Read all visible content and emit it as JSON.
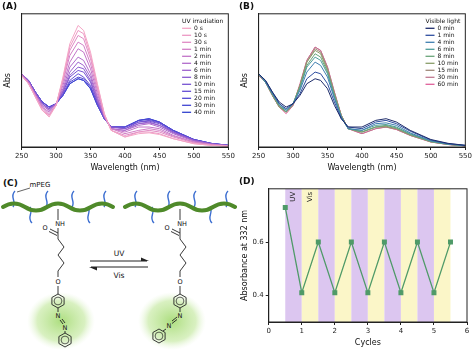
{
  "chart_data": [
    {
      "panel_label": "(A)",
      "type": "line",
      "marker": "none",
      "grid": false,
      "tick_labels": "x",
      "x_label": "Wavelength (nm)",
      "y_label": "Abs",
      "xlim": [
        250,
        550
      ],
      "xticks": [
        250,
        300,
        350,
        400,
        450,
        500,
        550
      ],
      "ylim": [
        0,
        0.8
      ],
      "legend": "upper right",
      "legend_title": "UV irradiation",
      "x": [
        250,
        260,
        270,
        280,
        290,
        300,
        310,
        320,
        332,
        340,
        350,
        360,
        370,
        380,
        400,
        420,
        435,
        450,
        470,
        500,
        525,
        550
      ],
      "series": [
        {
          "name": "0 s",
          "color": "#f4a6c6",
          "values": [
            0.43,
            0.38,
            0.3,
            0.22,
            0.18,
            0.25,
            0.42,
            0.62,
            0.73,
            0.7,
            0.57,
            0.38,
            0.2,
            0.1,
            0.06,
            0.08,
            0.085,
            0.075,
            0.05,
            0.02,
            0.01,
            0.005
          ]
        },
        {
          "name": "10 s",
          "color": "#ec98c4",
          "values": [
            0.43,
            0.38,
            0.3,
            0.22,
            0.19,
            0.25,
            0.41,
            0.6,
            0.7,
            0.68,
            0.55,
            0.37,
            0.2,
            0.1,
            0.06,
            0.09,
            0.09,
            0.08,
            0.05,
            0.02,
            0.01,
            0.005
          ]
        },
        {
          "name": "30 s",
          "color": "#e08bc4",
          "values": [
            0.43,
            0.38,
            0.31,
            0.23,
            0.19,
            0.25,
            0.4,
            0.58,
            0.67,
            0.65,
            0.53,
            0.36,
            0.19,
            0.1,
            0.07,
            0.09,
            0.1,
            0.09,
            0.06,
            0.025,
            0.012,
            0.006
          ]
        },
        {
          "name": "1 min",
          "color": "#d27fc6",
          "values": [
            0.43,
            0.39,
            0.31,
            0.24,
            0.2,
            0.25,
            0.39,
            0.55,
            0.63,
            0.61,
            0.5,
            0.34,
            0.19,
            0.11,
            0.08,
            0.1,
            0.11,
            0.1,
            0.065,
            0.03,
            0.014,
            0.006
          ]
        },
        {
          "name": "2 min",
          "color": "#c274c8",
          "values": [
            0.43,
            0.39,
            0.31,
            0.24,
            0.21,
            0.25,
            0.37,
            0.51,
            0.59,
            0.57,
            0.47,
            0.32,
            0.19,
            0.11,
            0.09,
            0.12,
            0.12,
            0.11,
            0.07,
            0.03,
            0.015,
            0.007
          ]
        },
        {
          "name": "4 min",
          "color": "#b06bcb",
          "values": [
            0.44,
            0.39,
            0.32,
            0.25,
            0.22,
            0.26,
            0.35,
            0.48,
            0.54,
            0.52,
            0.44,
            0.3,
            0.18,
            0.11,
            0.1,
            0.13,
            0.14,
            0.12,
            0.08,
            0.035,
            0.017,
            0.008
          ]
        },
        {
          "name": "6 min",
          "color": "#9d62cd",
          "values": [
            0.44,
            0.39,
            0.32,
            0.26,
            0.22,
            0.26,
            0.34,
            0.45,
            0.51,
            0.49,
            0.42,
            0.29,
            0.18,
            0.11,
            0.1,
            0.14,
            0.145,
            0.13,
            0.085,
            0.04,
            0.018,
            0.008
          ]
        },
        {
          "name": "8 min",
          "color": "#8a5ad0",
          "values": [
            0.44,
            0.4,
            0.32,
            0.26,
            0.23,
            0.26,
            0.33,
            0.43,
            0.48,
            0.47,
            0.4,
            0.28,
            0.18,
            0.12,
            0.11,
            0.14,
            0.15,
            0.13,
            0.09,
            0.04,
            0.019,
            0.009
          ]
        },
        {
          "name": "10 min",
          "color": "#7753d2",
          "values": [
            0.44,
            0.4,
            0.33,
            0.26,
            0.23,
            0.26,
            0.33,
            0.42,
            0.46,
            0.45,
            0.39,
            0.27,
            0.17,
            0.12,
            0.11,
            0.15,
            0.155,
            0.14,
            0.09,
            0.04,
            0.02,
            0.009
          ]
        },
        {
          "name": "15 min",
          "color": "#644dd4",
          "values": [
            0.44,
            0.4,
            0.33,
            0.27,
            0.24,
            0.26,
            0.32,
            0.4,
            0.44,
            0.42,
            0.37,
            0.26,
            0.17,
            0.12,
            0.12,
            0.15,
            0.16,
            0.145,
            0.095,
            0.045,
            0.021,
            0.01
          ]
        },
        {
          "name": "20 min",
          "color": "#5248d4",
          "values": [
            0.44,
            0.4,
            0.33,
            0.27,
            0.24,
            0.26,
            0.31,
            0.39,
            0.42,
            0.41,
            0.36,
            0.26,
            0.17,
            0.12,
            0.12,
            0.16,
            0.165,
            0.15,
            0.1,
            0.045,
            0.022,
            0.01
          ]
        },
        {
          "name": "30 min",
          "color": "#4145d2",
          "values": [
            0.44,
            0.4,
            0.33,
            0.27,
            0.24,
            0.26,
            0.31,
            0.38,
            0.41,
            0.4,
            0.35,
            0.25,
            0.17,
            0.12,
            0.12,
            0.16,
            0.17,
            0.15,
            0.1,
            0.045,
            0.022,
            0.01
          ]
        },
        {
          "name": "40 min",
          "color": "#3243cf",
          "values": [
            0.44,
            0.4,
            0.33,
            0.27,
            0.24,
            0.26,
            0.31,
            0.38,
            0.41,
            0.4,
            0.35,
            0.25,
            0.17,
            0.12,
            0.12,
            0.16,
            0.17,
            0.15,
            0.1,
            0.045,
            0.022,
            0.01
          ]
        }
      ]
    },
    {
      "panel_label": "(B)",
      "type": "line",
      "marker": "none",
      "grid": false,
      "tick_labels": "x",
      "x_label": "Wavelength (nm)",
      "y_label": "Abs",
      "xlim": [
        250,
        550
      ],
      "xticks": [
        250,
        300,
        350,
        400,
        450,
        500,
        550
      ],
      "ylim": [
        0,
        0.8
      ],
      "legend": "upper right",
      "legend_title": "Visible light",
      "x": [
        250,
        260,
        270,
        280,
        290,
        300,
        310,
        320,
        332,
        340,
        350,
        360,
        370,
        380,
        400,
        420,
        435,
        450,
        470,
        500,
        525,
        550
      ],
      "series": [
        {
          "name": "0 min",
          "color": "#1f2d6b",
          "values": [
            0.44,
            0.4,
            0.33,
            0.27,
            0.24,
            0.26,
            0.31,
            0.38,
            0.41,
            0.4,
            0.35,
            0.25,
            0.17,
            0.12,
            0.12,
            0.16,
            0.17,
            0.15,
            0.1,
            0.045,
            0.022,
            0.01
          ]
        },
        {
          "name": "1 min",
          "color": "#2f4fa0",
          "values": [
            0.44,
            0.4,
            0.33,
            0.26,
            0.23,
            0.26,
            0.32,
            0.41,
            0.45,
            0.44,
            0.38,
            0.27,
            0.17,
            0.12,
            0.11,
            0.15,
            0.16,
            0.14,
            0.095,
            0.042,
            0.02,
            0.01
          ]
        },
        {
          "name": "4 min",
          "color": "#3f7fb0",
          "values": [
            0.44,
            0.39,
            0.32,
            0.26,
            0.22,
            0.26,
            0.34,
            0.45,
            0.51,
            0.49,
            0.42,
            0.29,
            0.18,
            0.11,
            0.1,
            0.14,
            0.145,
            0.13,
            0.085,
            0.038,
            0.018,
            0.009
          ]
        },
        {
          "name": "6 min",
          "color": "#4c9c9a",
          "values": [
            0.44,
            0.39,
            0.32,
            0.25,
            0.22,
            0.26,
            0.35,
            0.48,
            0.54,
            0.52,
            0.44,
            0.3,
            0.18,
            0.11,
            0.1,
            0.13,
            0.135,
            0.12,
            0.08,
            0.035,
            0.017,
            0.008
          ]
        },
        {
          "name": "8 min",
          "color": "#6aa57a",
          "values": [
            0.44,
            0.39,
            0.32,
            0.25,
            0.21,
            0.26,
            0.36,
            0.49,
            0.56,
            0.54,
            0.45,
            0.31,
            0.18,
            0.11,
            0.09,
            0.12,
            0.13,
            0.115,
            0.075,
            0.033,
            0.016,
            0.008
          ]
        },
        {
          "name": "10 min",
          "color": "#8a9e6a",
          "values": [
            0.44,
            0.39,
            0.31,
            0.24,
            0.21,
            0.26,
            0.37,
            0.51,
            0.58,
            0.56,
            0.46,
            0.32,
            0.19,
            0.11,
            0.09,
            0.12,
            0.125,
            0.11,
            0.075,
            0.032,
            0.016,
            0.007
          ]
        },
        {
          "name": "15 min",
          "color": "#a08a7a",
          "values": [
            0.43,
            0.39,
            0.31,
            0.24,
            0.21,
            0.25,
            0.37,
            0.51,
            0.59,
            0.57,
            0.47,
            0.32,
            0.19,
            0.11,
            0.09,
            0.12,
            0.12,
            0.11,
            0.07,
            0.031,
            0.015,
            0.007
          ]
        },
        {
          "name": "30 min",
          "color": "#c07890",
          "values": [
            0.43,
            0.39,
            0.31,
            0.24,
            0.21,
            0.25,
            0.37,
            0.52,
            0.6,
            0.58,
            0.48,
            0.33,
            0.19,
            0.11,
            0.08,
            0.11,
            0.12,
            0.105,
            0.07,
            0.03,
            0.015,
            0.007
          ]
        },
        {
          "name": "60 min",
          "color": "#e0609a",
          "values": [
            0.43,
            0.39,
            0.31,
            0.24,
            0.2,
            0.25,
            0.38,
            0.52,
            0.6,
            0.58,
            0.48,
            0.33,
            0.19,
            0.11,
            0.08,
            0.11,
            0.12,
            0.105,
            0.07,
            0.03,
            0.015,
            0.007
          ]
        }
      ]
    },
    {
      "panel_label": "(D)",
      "type": "line",
      "marker": "square",
      "grid": false,
      "color": "#4f9a68",
      "x_label": "Cycles",
      "y_label": "Absorbance at 332 nm",
      "xlim": [
        0,
        6
      ],
      "xticks": [
        0,
        1,
        2,
        3,
        4,
        5,
        6
      ],
      "ylim": [
        0.3,
        0.8
      ],
      "yticks": [
        0.4,
        0.6
      ],
      "x": [
        0.5,
        1,
        1.5,
        2,
        2.5,
        3,
        3.5,
        4,
        4.5,
        5,
        5.5
      ],
      "values": [
        0.73,
        0.41,
        0.6,
        0.41,
        0.6,
        0.41,
        0.6,
        0.41,
        0.6,
        0.41,
        0.6
      ],
      "bands": [
        {
          "from": 0.5,
          "to": 1,
          "label": "UV",
          "color": "#dcc6f0"
        },
        {
          "from": 1,
          "to": 1.5,
          "label": "Vis",
          "color": "#fbf6c8"
        },
        {
          "from": 1.5,
          "to": 2,
          "color": "#dcc6f0"
        },
        {
          "from": 2,
          "to": 2.5,
          "color": "#fbf6c8"
        },
        {
          "from": 2.5,
          "to": 3,
          "color": "#dcc6f0"
        },
        {
          "from": 3,
          "to": 3.5,
          "color": "#fbf6c8"
        },
        {
          "from": 3.5,
          "to": 4,
          "color": "#dcc6f0"
        },
        {
          "from": 4,
          "to": 4.5,
          "color": "#fbf6c8"
        },
        {
          "from": 4.5,
          "to": 5,
          "color": "#dcc6f0"
        },
        {
          "from": 5,
          "to": 5.5,
          "color": "#fbf6c8"
        }
      ]
    }
  ],
  "diagram": {
    "panel_label": "(C)",
    "polymer_label": "mPEG",
    "amide": "NH",
    "carbonyl": "O",
    "ether": "O",
    "azo": "N",
    "forward": "UV",
    "reverse": "Vis"
  }
}
